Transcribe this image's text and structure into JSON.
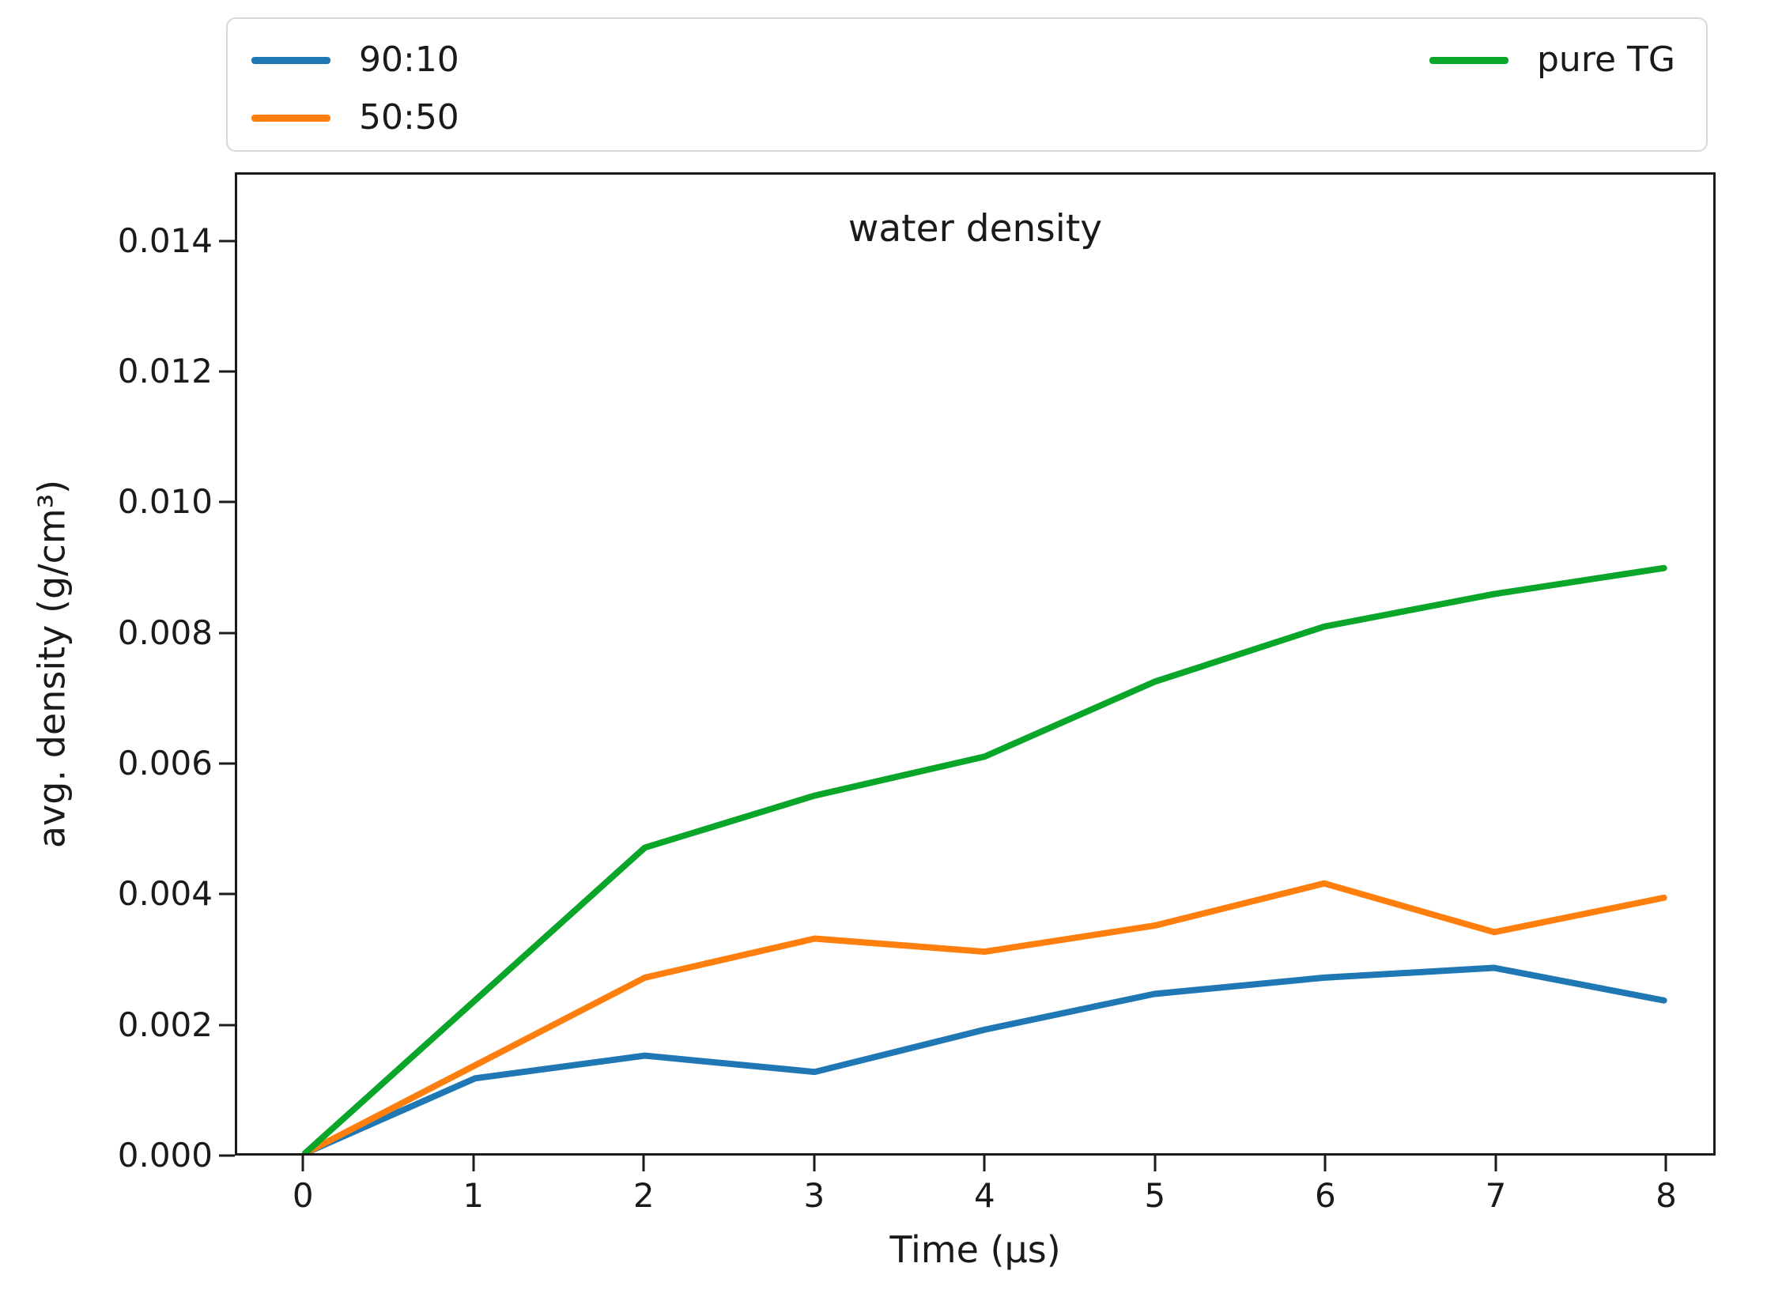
{
  "figure": {
    "background": "#ffffff",
    "text_color": "#1a1a1a",
    "spine_color": "#1a1a1a",
    "legend": {
      "border_color": "#d8d8d8",
      "entries": [
        {
          "label": "90:10",
          "color": "#1f77b4"
        },
        {
          "label": "50:50",
          "color": "#ff7f0e"
        },
        {
          "label": "pure TG",
          "color": "#0aa62a"
        }
      ]
    }
  },
  "chart_data": {
    "type": "line",
    "title": "water density",
    "xlabel": "Time (μs)",
    "ylabel": "avg. density (g/cm³)",
    "x": [
      0,
      1,
      2,
      3,
      4,
      5,
      6,
      7,
      8
    ],
    "series": [
      {
        "name": "90:10",
        "color": "#1f77b4",
        "values": [
          0.0,
          0.00115,
          0.0015,
          0.00125,
          0.0019,
          0.00245,
          0.0027,
          0.00285,
          0.00235
        ]
      },
      {
        "name": "50:50",
        "color": "#ff7f0e",
        "values": [
          0.0,
          0.00135,
          0.0027,
          0.0033,
          0.0031,
          0.0035,
          0.00415,
          0.0034,
          0.00393
        ]
      },
      {
        "name": "pure TG",
        "color": "#0aa62a",
        "values": [
          0.0,
          0.00235,
          0.0047,
          0.0055,
          0.0061,
          0.00725,
          0.0081,
          0.0086,
          0.009
        ]
      }
    ],
    "xlim": [
      -0.4,
      8.29
    ],
    "ylim": [
      0,
      0.01505
    ],
    "x_ticks": [
      0,
      1,
      2,
      3,
      4,
      5,
      6,
      7,
      8
    ],
    "x_tick_labels": [
      "0",
      "1",
      "2",
      "3",
      "4",
      "5",
      "6",
      "7",
      "8"
    ],
    "y_ticks": [
      0,
      0.002,
      0.004,
      0.006,
      0.008,
      0.01,
      0.012,
      0.014
    ],
    "y_tick_labels": [
      "0.000",
      "0.002",
      "0.004",
      "0.006",
      "0.008",
      "0.010",
      "0.012",
      "0.014"
    ],
    "grid": false,
    "legend_position": "top expanded, 2 columns (90:10 and 50:50 left, pure TG right)"
  }
}
